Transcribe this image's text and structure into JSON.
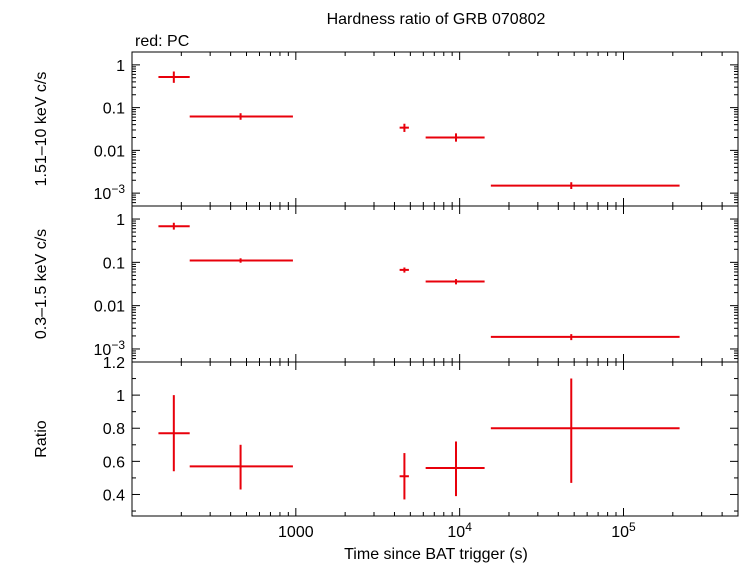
{
  "chart_data": {
    "type": "scatter",
    "title": "Hardness ratio of GRB 070802",
    "subtitle": "red: PC",
    "xlabel": "Time since BAT trigger (s)",
    "x_scale": "log",
    "xlim": [
      100,
      500000
    ],
    "x_ticks": [
      {
        "value": 1000,
        "label": "1000",
        "sup": ""
      },
      {
        "value": 10000,
        "label": "10",
        "sup": "4"
      },
      {
        "value": 100000,
        "label": "10",
        "sup": "5"
      }
    ],
    "color": "#e8000b",
    "panels": [
      {
        "name": "hard",
        "ylabel": "1.51–10 keV c/s",
        "y_scale": "log",
        "ylim": [
          0.0005,
          2
        ],
        "y_ticks": [
          {
            "value": 1,
            "label": "1",
            "sup": ""
          },
          {
            "value": 0.1,
            "label": "0.1",
            "sup": ""
          },
          {
            "value": 0.01,
            "label": "0.01",
            "sup": ""
          },
          {
            "value": 0.001,
            "label": "10",
            "sup": "−3"
          }
        ],
        "points": [
          {
            "x": 180,
            "xlo": 145,
            "xhi": 225,
            "y": 0.52,
            "ylo": 0.38,
            "yhi": 0.7
          },
          {
            "x": 460,
            "xlo": 225,
            "xhi": 960,
            "y": 0.062,
            "ylo": 0.052,
            "yhi": 0.074
          },
          {
            "x": 4600,
            "xlo": 4300,
            "xhi": 4900,
            "y": 0.034,
            "ylo": 0.027,
            "yhi": 0.042
          },
          {
            "x": 9500,
            "xlo": 6200,
            "xhi": 14200,
            "y": 0.02,
            "ylo": 0.016,
            "yhi": 0.025
          },
          {
            "x": 48000,
            "xlo": 15500,
            "xhi": 220000,
            "y": 0.0015,
            "ylo": 0.00125,
            "yhi": 0.0018
          }
        ]
      },
      {
        "name": "soft",
        "ylabel": "0.3–1.5 keV c/s",
        "y_scale": "log",
        "ylim": [
          0.0005,
          2
        ],
        "y_ticks": [
          {
            "value": 1,
            "label": "1",
            "sup": ""
          },
          {
            "value": 0.1,
            "label": "0.1",
            "sup": ""
          },
          {
            "value": 0.01,
            "label": "0.01",
            "sup": ""
          },
          {
            "value": 0.001,
            "label": "10",
            "sup": "−3"
          }
        ],
        "points": [
          {
            "x": 180,
            "xlo": 145,
            "xhi": 225,
            "y": 0.68,
            "ylo": 0.57,
            "yhi": 0.82
          },
          {
            "x": 460,
            "xlo": 225,
            "xhi": 960,
            "y": 0.11,
            "ylo": 0.098,
            "yhi": 0.124
          },
          {
            "x": 4600,
            "xlo": 4300,
            "xhi": 4900,
            "y": 0.067,
            "ylo": 0.058,
            "yhi": 0.076
          },
          {
            "x": 9500,
            "xlo": 6200,
            "xhi": 14200,
            "y": 0.036,
            "ylo": 0.031,
            "yhi": 0.041
          },
          {
            "x": 48000,
            "xlo": 15500,
            "xhi": 220000,
            "y": 0.0019,
            "ylo": 0.0016,
            "yhi": 0.0022
          }
        ]
      },
      {
        "name": "ratio",
        "ylabel": "Ratio",
        "y_scale": "linear",
        "ylim": [
          0.27,
          1.2
        ],
        "y_ticks": [
          {
            "value": 1.2,
            "label": "1.2",
            "sup": ""
          },
          {
            "value": 1.0,
            "label": "1",
            "sup": ""
          },
          {
            "value": 0.8,
            "label": "0.8",
            "sup": ""
          },
          {
            "value": 0.6,
            "label": "0.6",
            "sup": ""
          },
          {
            "value": 0.4,
            "label": "0.4",
            "sup": ""
          }
        ],
        "points": [
          {
            "x": 180,
            "xlo": 145,
            "xhi": 225,
            "y": 0.77,
            "ylo": 0.54,
            "yhi": 1.0
          },
          {
            "x": 460,
            "xlo": 225,
            "xhi": 960,
            "y": 0.57,
            "ylo": 0.43,
            "yhi": 0.7
          },
          {
            "x": 4600,
            "xlo": 4300,
            "xhi": 4900,
            "y": 0.51,
            "ylo": 0.37,
            "yhi": 0.65
          },
          {
            "x": 9500,
            "xlo": 6200,
            "xhi": 14200,
            "y": 0.56,
            "ylo": 0.39,
            "yhi": 0.72
          },
          {
            "x": 48000,
            "xlo": 15500,
            "xhi": 220000,
            "y": 0.8,
            "ylo": 0.47,
            "yhi": 1.1
          }
        ]
      }
    ]
  }
}
